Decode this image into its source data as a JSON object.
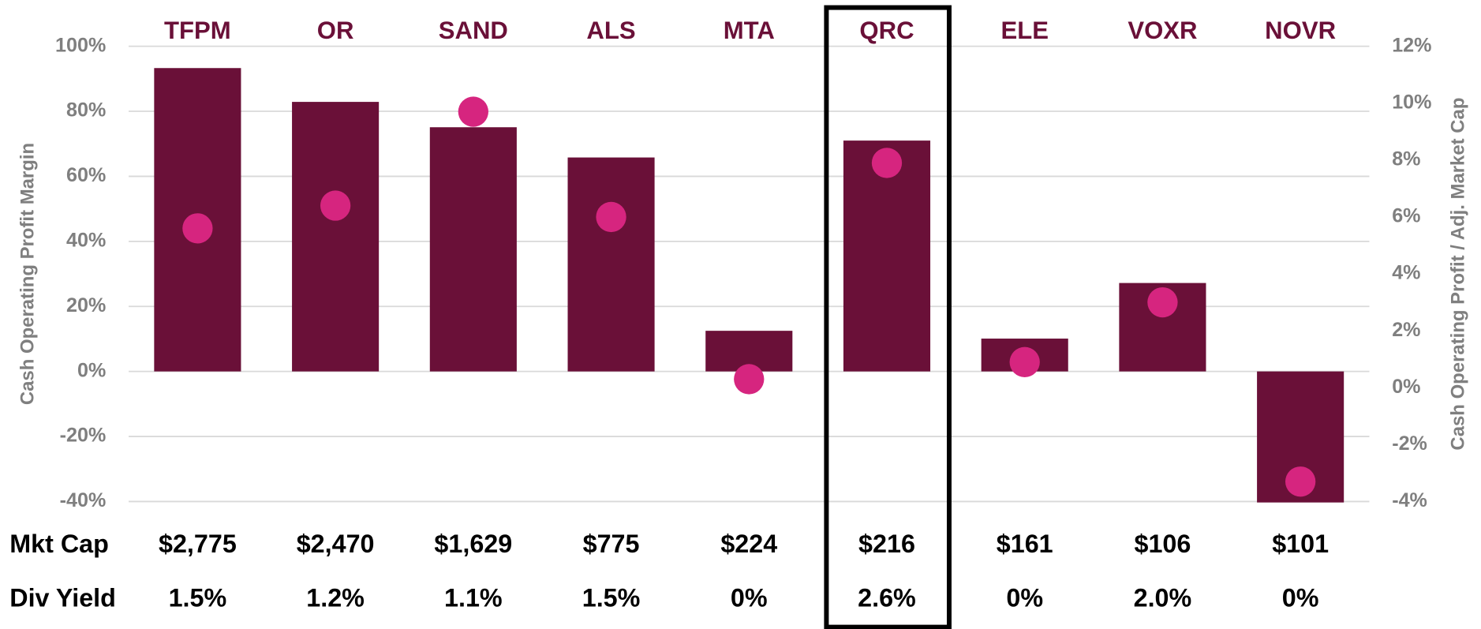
{
  "chart_data": {
    "type": "bar-dot",
    "categories": [
      "TFPM",
      "OR",
      "SAND",
      "ALS",
      "MTA",
      "QRC",
      "ELE",
      "VOXR",
      "NOVR"
    ],
    "series": [
      {
        "type": "bar",
        "color": "#6a1038",
        "values": [
          93.3,
          82.9,
          75.1,
          65.8,
          12.5,
          71.0,
          10.1,
          27.2,
          -40.3
        ]
      },
      {
        "type": "dot",
        "axis": "y2",
        "color": "#d6257f",
        "values": [
          5.6,
          6.4,
          9.7,
          6.0,
          0.3,
          7.9,
          0.9,
          3.0,
          -3.3
        ]
      }
    ],
    "ylabel": "Cash Operating Profit Margin",
    "y2label": "Cash Operating Profit / Adj. Market Cap",
    "ylim": [
      -40,
      100
    ],
    "yticks": [
      {
        "value": -40,
        "label": "-40%"
      },
      {
        "value": -20,
        "label": "-20%"
      },
      {
        "value": 0,
        "label": "0%"
      },
      {
        "value": 20,
        "label": "20%"
      },
      {
        "value": 40,
        "label": "40%"
      },
      {
        "value": 60,
        "label": "60%"
      },
      {
        "value": 80,
        "label": "80%"
      },
      {
        "value": 100,
        "label": "100%"
      }
    ],
    "y2lim": [
      -4,
      12
    ],
    "y2ticks": [
      {
        "value": -4,
        "label": "-4%"
      },
      {
        "value": -2,
        "label": "-2%"
      },
      {
        "value": 0,
        "label": "0%"
      },
      {
        "value": 2,
        "label": "2%"
      },
      {
        "value": 4,
        "label": "4%"
      },
      {
        "value": 6,
        "label": "6%"
      },
      {
        "value": 8,
        "label": "8%"
      },
      {
        "value": 10,
        "label": "10%"
      },
      {
        "value": 12,
        "label": "12%"
      }
    ],
    "grid": true,
    "highlight_index": 5,
    "table_rows": [
      {
        "label": "Mkt Cap",
        "values": [
          "$2,775",
          "$2,470",
          "$1,629",
          "$775",
          "$224",
          "$216",
          "$161",
          "$106",
          "$101"
        ]
      },
      {
        "label": "Div Yield",
        "values": [
          "1.5%",
          "1.2%",
          "1.1%",
          "1.5%",
          "0%",
          "2.6%",
          "0%",
          "2.0%",
          "0%"
        ]
      }
    ]
  }
}
